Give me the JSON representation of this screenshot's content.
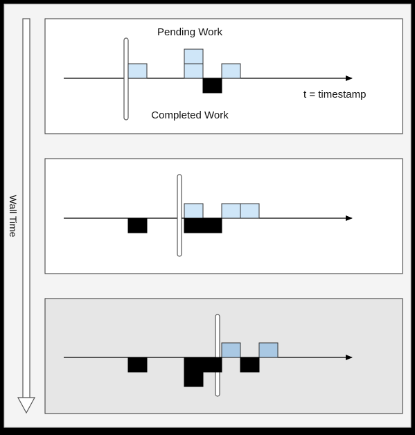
{
  "figure": {
    "wall_time_label": "Wall Time",
    "axis_label": "t = timestamp",
    "pending_label": "Pending Work",
    "completed_label": "Completed Work"
  },
  "colors": {
    "outer_background": "#f4f4f4",
    "panel_background": "#ffffff",
    "panel_background_last": "#e6e6e6",
    "pending_box": "#cfe6f8",
    "pending_box_last": "#a9c8e3",
    "completed_box": "#000000",
    "arrow": "#555555"
  },
  "panels": [
    {
      "pending": [
        {
          "col": 0,
          "level": 1
        },
        {
          "col": 3,
          "level": 1
        },
        {
          "col": 3,
          "level": 2
        },
        {
          "col": 5,
          "level": 1
        }
      ],
      "completed": [
        {
          "col": 4,
          "level": 1
        }
      ]
    },
    {
      "pending": [
        {
          "col": 3,
          "level": 1
        },
        {
          "col": 5,
          "level": 1
        },
        {
          "col": 6,
          "level": 1
        }
      ],
      "completed": [
        {
          "col": 0,
          "level": 1
        },
        {
          "col": 3,
          "level": 1
        },
        {
          "col": 4,
          "level": 1
        }
      ]
    },
    {
      "pending": [
        {
          "col": 5,
          "level": 1
        },
        {
          "col": 7,
          "level": 1
        }
      ],
      "completed": [
        {
          "col": 0,
          "level": 1
        },
        {
          "col": 3,
          "level": 1
        },
        {
          "col": 3,
          "level": 2
        },
        {
          "col": 4,
          "level": 1
        },
        {
          "col": 6,
          "level": 1
        }
      ]
    }
  ]
}
